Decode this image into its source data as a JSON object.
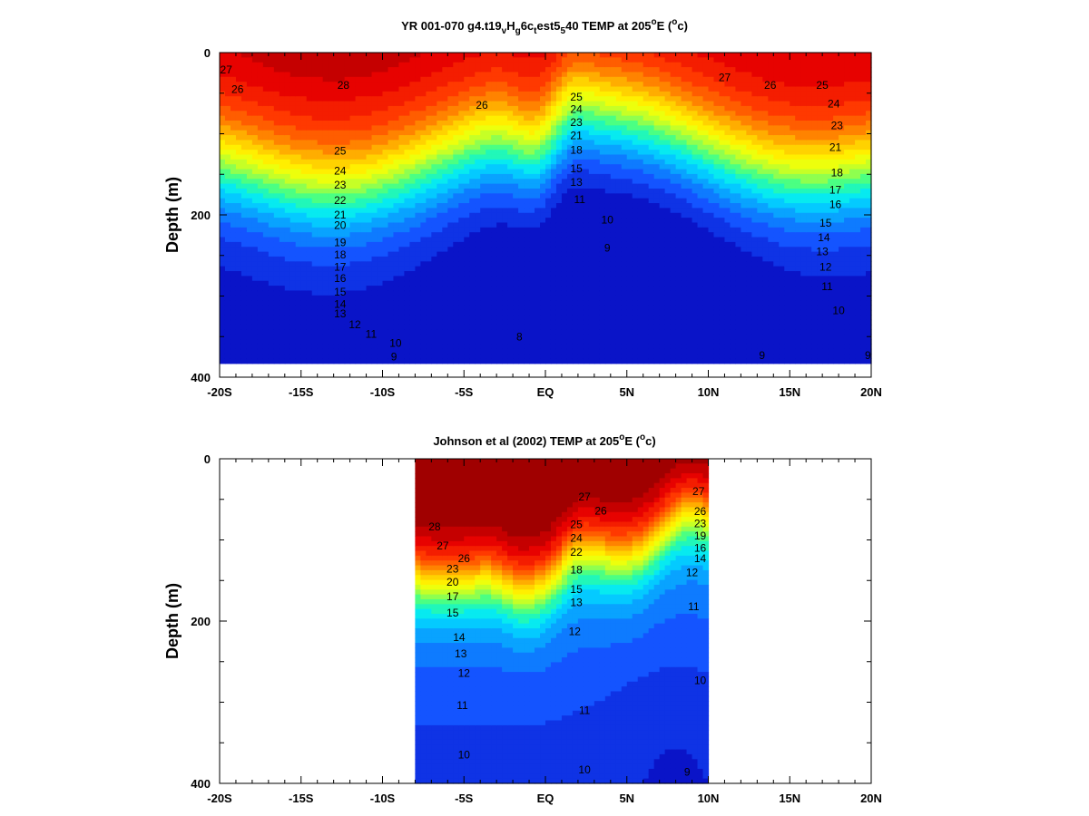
{
  "chart_data": [
    {
      "type": "heatmap",
      "title_parts": [
        {
          "text": "YR 001-070 g4.t19",
          "shift": "base"
        },
        {
          "text": "v",
          "shift": "sub"
        },
        {
          "text": "H",
          "shift": "base"
        },
        {
          "text": "g",
          "shift": "sub"
        },
        {
          "text": "6c",
          "shift": "base"
        },
        {
          "text": "t",
          "shift": "sub"
        },
        {
          "text": "est5",
          "shift": "base"
        },
        {
          "text": "5",
          "shift": "sub"
        },
        {
          "text": "40 TEMP at 205",
          "shift": "base"
        },
        {
          "text": "o",
          "shift": "super"
        },
        {
          "text": "E (",
          "shift": "base"
        },
        {
          "text": "o",
          "shift": "super"
        },
        {
          "text": "c)",
          "shift": "base"
        }
      ],
      "ylabel": "Depth (m)",
      "x_ticks": [
        -20,
        -15,
        -10,
        -5,
        0,
        5,
        10,
        15,
        20
      ],
      "x_tick_labels": [
        "-20S",
        "-15S",
        "-10S",
        "-5S",
        "EQ",
        "5N",
        "10N",
        "15N",
        "20N"
      ],
      "y_ticks": [
        0,
        200,
        400
      ],
      "y_tick_labels": [
        "0",
        "200",
        "400"
      ],
      "xlim": [
        -20,
        20
      ],
      "ylim": [
        0,
        400
      ],
      "data_xrange": [
        -20,
        20
      ],
      "data_yrange": [
        0,
        383
      ],
      "color_range": [
        8,
        29
      ],
      "colormap": [
        "#0a14c8",
        "#1450ff",
        "#0a9cff",
        "#00e6ff",
        "#32ff96",
        "#b4ff32",
        "#ffff00",
        "#ffc800",
        "#ff7800",
        "#ff3200",
        "#e60000",
        "#a00000"
      ],
      "contour_labels": [
        {
          "x": 11.0,
          "y": 31,
          "text": "27"
        },
        {
          "x": 13.8,
          "y": 40,
          "text": "26"
        },
        {
          "x": 17.0,
          "y": 40,
          "text": "25"
        },
        {
          "x": 17.7,
          "y": 63,
          "text": "24"
        },
        {
          "x": 17.9,
          "y": 90,
          "text": "23"
        },
        {
          "x": 17.8,
          "y": 117,
          "text": "21"
        },
        {
          "x": 17.9,
          "y": 148,
          "text": "18"
        },
        {
          "x": 17.8,
          "y": 169,
          "text": "17"
        },
        {
          "x": 17.8,
          "y": 187,
          "text": "16"
        },
        {
          "x": 17.2,
          "y": 210,
          "text": "15"
        },
        {
          "x": 17.1,
          "y": 228,
          "text": "14"
        },
        {
          "x": 17.0,
          "y": 245,
          "text": "13"
        },
        {
          "x": 17.2,
          "y": 264,
          "text": "12"
        },
        {
          "x": 17.3,
          "y": 288,
          "text": "11"
        },
        {
          "x": 18.0,
          "y": 318,
          "text": "10"
        },
        {
          "x": 19.8,
          "y": 373,
          "text": "9"
        },
        {
          "x": 13.3,
          "y": 373,
          "text": "9"
        },
        {
          "x": 3.8,
          "y": 241,
          "text": "9"
        },
        {
          "x": -1.6,
          "y": 350,
          "text": "8"
        },
        {
          "x": 3.8,
          "y": 206,
          "text": "10"
        },
        {
          "x": 2.1,
          "y": 181,
          "text": "11"
        },
        {
          "x": -12.4,
          "y": 40,
          "text": "28"
        },
        {
          "x": -3.9,
          "y": 65,
          "text": "26"
        },
        {
          "x": -12.6,
          "y": 121,
          "text": "25"
        },
        {
          "x": -12.6,
          "y": 146,
          "text": "24"
        },
        {
          "x": -12.6,
          "y": 163,
          "text": "23"
        },
        {
          "x": -12.6,
          "y": 182,
          "text": "22"
        },
        {
          "x": -12.6,
          "y": 200,
          "text": "21"
        },
        {
          "x": -12.6,
          "y": 213,
          "text": "20"
        },
        {
          "x": -12.6,
          "y": 234,
          "text": "19"
        },
        {
          "x": -12.6,
          "y": 249,
          "text": "18"
        },
        {
          "x": -12.6,
          "y": 264,
          "text": "17"
        },
        {
          "x": -12.6,
          "y": 278,
          "text": "16"
        },
        {
          "x": -12.6,
          "y": 295,
          "text": "15"
        },
        {
          "x": -12.6,
          "y": 310,
          "text": "14"
        },
        {
          "x": -12.6,
          "y": 322,
          "text": "13"
        },
        {
          "x": -11.7,
          "y": 335,
          "text": "12"
        },
        {
          "x": -10.7,
          "y": 347,
          "text": "11"
        },
        {
          "x": -9.2,
          "y": 358,
          "text": "10"
        },
        {
          "x": -9.3,
          "y": 375,
          "text": "9"
        },
        {
          "x": -19.6,
          "y": 21,
          "text": "27"
        },
        {
          "x": -18.9,
          "y": 45,
          "text": "26"
        },
        {
          "x": 1.9,
          "y": 55,
          "text": "25"
        },
        {
          "x": 1.9,
          "y": 70,
          "text": "24"
        },
        {
          "x": 1.9,
          "y": 86,
          "text": "23"
        },
        {
          "x": 1.9,
          "y": 102,
          "text": "21"
        },
        {
          "x": 1.9,
          "y": 120,
          "text": "18"
        },
        {
          "x": 1.9,
          "y": 143,
          "text": "15"
        },
        {
          "x": 1.9,
          "y": 160,
          "text": "13"
        }
      ]
    },
    {
      "type": "heatmap",
      "title_parts": [
        {
          "text": "Johnson et al (2002) TEMP at 205",
          "shift": "base"
        },
        {
          "text": "o",
          "shift": "super"
        },
        {
          "text": "E (",
          "shift": "base"
        },
        {
          "text": "o",
          "shift": "super"
        },
        {
          "text": "c)",
          "shift": "base"
        }
      ],
      "ylabel": "Depth (m)",
      "x_ticks": [
        -20,
        -15,
        -10,
        -5,
        0,
        5,
        10,
        15,
        20
      ],
      "x_tick_labels": [
        "-20S",
        "-15S",
        "-10S",
        "-5S",
        "EQ",
        "5N",
        "10N",
        "15N",
        "20N"
      ],
      "y_ticks": [
        0,
        200,
        400
      ],
      "y_tick_labels": [
        "0",
        "200",
        "400"
      ],
      "xlim": [
        -20,
        20
      ],
      "ylim": [
        0,
        400
      ],
      "data_xrange": [
        -8,
        10
      ],
      "data_yrange": [
        0,
        400
      ],
      "color_range": [
        8,
        29
      ],
      "colormap": [
        "#0a14c8",
        "#1450ff",
        "#0a9cff",
        "#00e6ff",
        "#32ff96",
        "#b4ff32",
        "#ffff00",
        "#ffc800",
        "#ff7800",
        "#ff3200",
        "#e60000",
        "#a00000"
      ],
      "contour_labels": [
        {
          "x": -6.8,
          "y": 84,
          "text": "28"
        },
        {
          "x": -6.3,
          "y": 107,
          "text": "27"
        },
        {
          "x": -5.0,
          "y": 123,
          "text": "26"
        },
        {
          "x": -5.7,
          "y": 136,
          "text": "23"
        },
        {
          "x": -5.7,
          "y": 152,
          "text": "20"
        },
        {
          "x": -5.7,
          "y": 170,
          "text": "17"
        },
        {
          "x": -5.7,
          "y": 190,
          "text": "15"
        },
        {
          "x": -5.3,
          "y": 220,
          "text": "14"
        },
        {
          "x": -5.2,
          "y": 240,
          "text": "13"
        },
        {
          "x": -5.0,
          "y": 264,
          "text": "12"
        },
        {
          "x": -5.1,
          "y": 304,
          "text": "11"
        },
        {
          "x": -5.0,
          "y": 365,
          "text": "10"
        },
        {
          "x": 2.4,
          "y": 47,
          "text": "27"
        },
        {
          "x": 3.4,
          "y": 64,
          "text": "26"
        },
        {
          "x": 1.9,
          "y": 81,
          "text": "25"
        },
        {
          "x": 1.9,
          "y": 98,
          "text": "24"
        },
        {
          "x": 1.9,
          "y": 115,
          "text": "22"
        },
        {
          "x": 1.9,
          "y": 137,
          "text": "18"
        },
        {
          "x": 1.9,
          "y": 161,
          "text": "15"
        },
        {
          "x": 1.9,
          "y": 177,
          "text": "13"
        },
        {
          "x": 1.8,
          "y": 213,
          "text": "12"
        },
        {
          "x": 2.4,
          "y": 310,
          "text": "11"
        },
        {
          "x": 2.4,
          "y": 383,
          "text": "10"
        },
        {
          "x": 9.4,
          "y": 40,
          "text": "27"
        },
        {
          "x": 9.5,
          "y": 65,
          "text": "26"
        },
        {
          "x": 9.5,
          "y": 80,
          "text": "23"
        },
        {
          "x": 9.5,
          "y": 95,
          "text": "19"
        },
        {
          "x": 9.5,
          "y": 110,
          "text": "16"
        },
        {
          "x": 9.5,
          "y": 123,
          "text": "14"
        },
        {
          "x": 9.0,
          "y": 140,
          "text": "12"
        },
        {
          "x": 9.1,
          "y": 182,
          "text": "11"
        },
        {
          "x": 9.5,
          "y": 273,
          "text": "10"
        },
        {
          "x": 8.7,
          "y": 386,
          "text": "9"
        }
      ]
    }
  ]
}
